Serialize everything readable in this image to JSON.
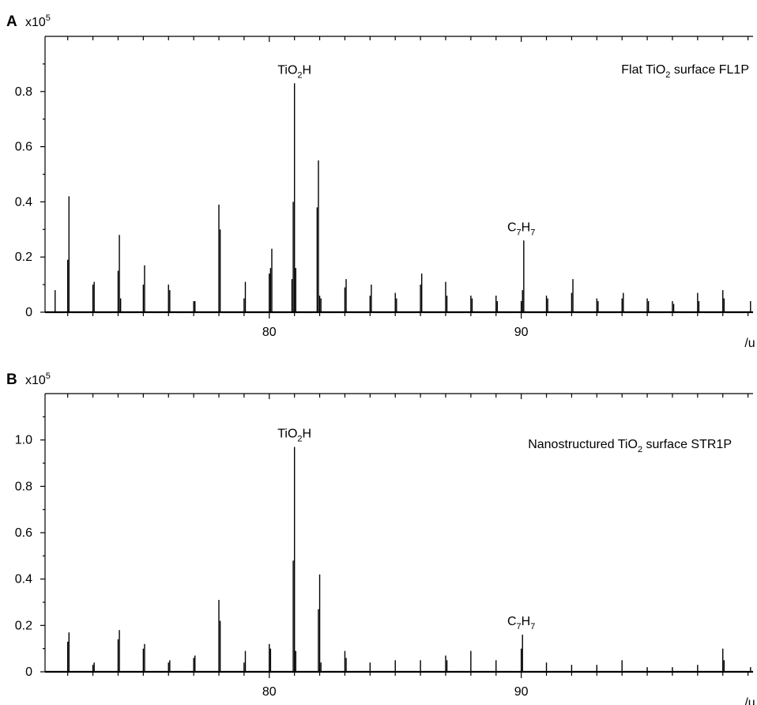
{
  "figure": {
    "panels": [
      {
        "letter": "A",
        "multiplier_base": "x10",
        "multiplier_exp": "5",
        "surface_label": {
          "pre": "Flat TiO",
          "sub": "2",
          "post": " surface FL1P"
        },
        "xunit": "/u"
      },
      {
        "letter": "B",
        "multiplier_base": "x10",
        "multiplier_exp": "5",
        "surface_label": {
          "pre": "Nanostructured TiO",
          "sub": "2",
          "post": " surface STR1P"
        },
        "xunit": "/u"
      }
    ]
  },
  "chart_data": [
    {
      "type": "bar",
      "xlabel": "/u",
      "ylabel": "x10^5",
      "xlim": [
        71.1,
        99.2
      ],
      "ylim": [
        0,
        1.0
      ],
      "xticks": [
        80,
        90
      ],
      "yticks": [
        0,
        0.2,
        0.4,
        0.6,
        0.8
      ],
      "ytick_labels": [
        "0",
        "0.2",
        "0.4",
        "0.6",
        "0.8"
      ],
      "grid": false,
      "annotations": [
        {
          "x": 81,
          "y": 0.83,
          "parts": [
            {
              "t": "TiO"
            },
            {
              "t": "2",
              "sub": true
            },
            {
              "t": "H"
            }
          ]
        },
        {
          "x": 90,
          "y": 0.26,
          "parts": [
            {
              "t": "C"
            },
            {
              "t": "7",
              "sub": true
            },
            {
              "t": "H"
            },
            {
              "t": "7",
              "sub": true
            }
          ]
        }
      ],
      "series": [
        {
          "x": [
            71.5,
            72.0,
            72.05,
            73.0,
            73.05,
            74.0,
            74.05,
            74.1,
            75.0,
            75.05,
            76.0,
            76.05,
            77.0,
            77.05,
            78.0,
            78.05,
            79.0,
            79.05,
            80.0,
            80.05,
            80.1,
            80.9,
            80.95,
            81.0,
            81.05,
            81.9,
            81.95,
            82.0,
            82.05,
            83.0,
            83.05,
            84.0,
            84.05,
            85.0,
            85.05,
            86.0,
            86.05,
            87.0,
            87.05,
            88.0,
            88.05,
            89.0,
            89.05,
            90.0,
            90.05,
            90.1,
            91.0,
            91.05,
            92.0,
            92.05,
            93.0,
            93.05,
            94.0,
            94.05,
            95.0,
            95.05,
            96.0,
            96.05,
            97.0,
            97.05,
            98.0,
            98.05,
            99.1
          ],
          "y": [
            0.08,
            0.19,
            0.42,
            0.1,
            0.11,
            0.15,
            0.28,
            0.05,
            0.1,
            0.17,
            0.1,
            0.08,
            0.04,
            0.04,
            0.39,
            0.3,
            0.05,
            0.11,
            0.14,
            0.16,
            0.23,
            0.12,
            0.4,
            0.83,
            0.16,
            0.38,
            0.55,
            0.06,
            0.05,
            0.09,
            0.12,
            0.06,
            0.1,
            0.07,
            0.05,
            0.1,
            0.14,
            0.11,
            0.06,
            0.06,
            0.05,
            0.06,
            0.04,
            0.04,
            0.08,
            0.26,
            0.06,
            0.05,
            0.07,
            0.12,
            0.05,
            0.04,
            0.05,
            0.07,
            0.05,
            0.04,
            0.04,
            0.03,
            0.07,
            0.04,
            0.08,
            0.05,
            0.04
          ]
        }
      ]
    },
    {
      "type": "bar",
      "xlabel": "/u",
      "ylabel": "x10^5",
      "xlim": [
        71.1,
        99.2
      ],
      "ylim": [
        0,
        1.2
      ],
      "xticks": [
        80,
        90
      ],
      "yticks": [
        0,
        0.2,
        0.4,
        0.6,
        0.8,
        1.0
      ],
      "ytick_labels": [
        "0",
        "0.2",
        "0.4",
        "0.6",
        "0.8",
        "1.0"
      ],
      "grid": false,
      "annotations": [
        {
          "x": 81,
          "y": 0.97,
          "parts": [
            {
              "t": "TiO"
            },
            {
              "t": "2",
              "sub": true
            },
            {
              "t": "H"
            }
          ]
        },
        {
          "x": 90,
          "y": 0.16,
          "parts": [
            {
              "t": "C"
            },
            {
              "t": "7",
              "sub": true
            },
            {
              "t": "H"
            },
            {
              "t": "7",
              "sub": true
            }
          ]
        }
      ],
      "series": [
        {
          "x": [
            72.0,
            72.05,
            73.0,
            73.05,
            74.0,
            74.05,
            75.0,
            75.05,
            76.0,
            76.05,
            77.0,
            77.05,
            78.0,
            78.05,
            79.0,
            79.05,
            80.0,
            80.05,
            80.95,
            81.0,
            81.05,
            81.95,
            82.0,
            82.05,
            83.0,
            83.05,
            84.0,
            85.0,
            86.0,
            87.0,
            87.05,
            88.0,
            89.0,
            90.0,
            90.05,
            91.0,
            92.0,
            93.0,
            94.0,
            95.0,
            96.0,
            97.0,
            98.0,
            98.05,
            99.1
          ],
          "y": [
            0.13,
            0.17,
            0.03,
            0.04,
            0.14,
            0.18,
            0.1,
            0.12,
            0.04,
            0.05,
            0.06,
            0.07,
            0.31,
            0.22,
            0.04,
            0.09,
            0.12,
            0.1,
            0.48,
            0.97,
            0.09,
            0.27,
            0.42,
            0.04,
            0.09,
            0.06,
            0.04,
            0.05,
            0.05,
            0.07,
            0.05,
            0.09,
            0.05,
            0.1,
            0.16,
            0.04,
            0.03,
            0.03,
            0.05,
            0.02,
            0.02,
            0.03,
            0.1,
            0.05,
            0.02
          ]
        }
      ]
    }
  ]
}
